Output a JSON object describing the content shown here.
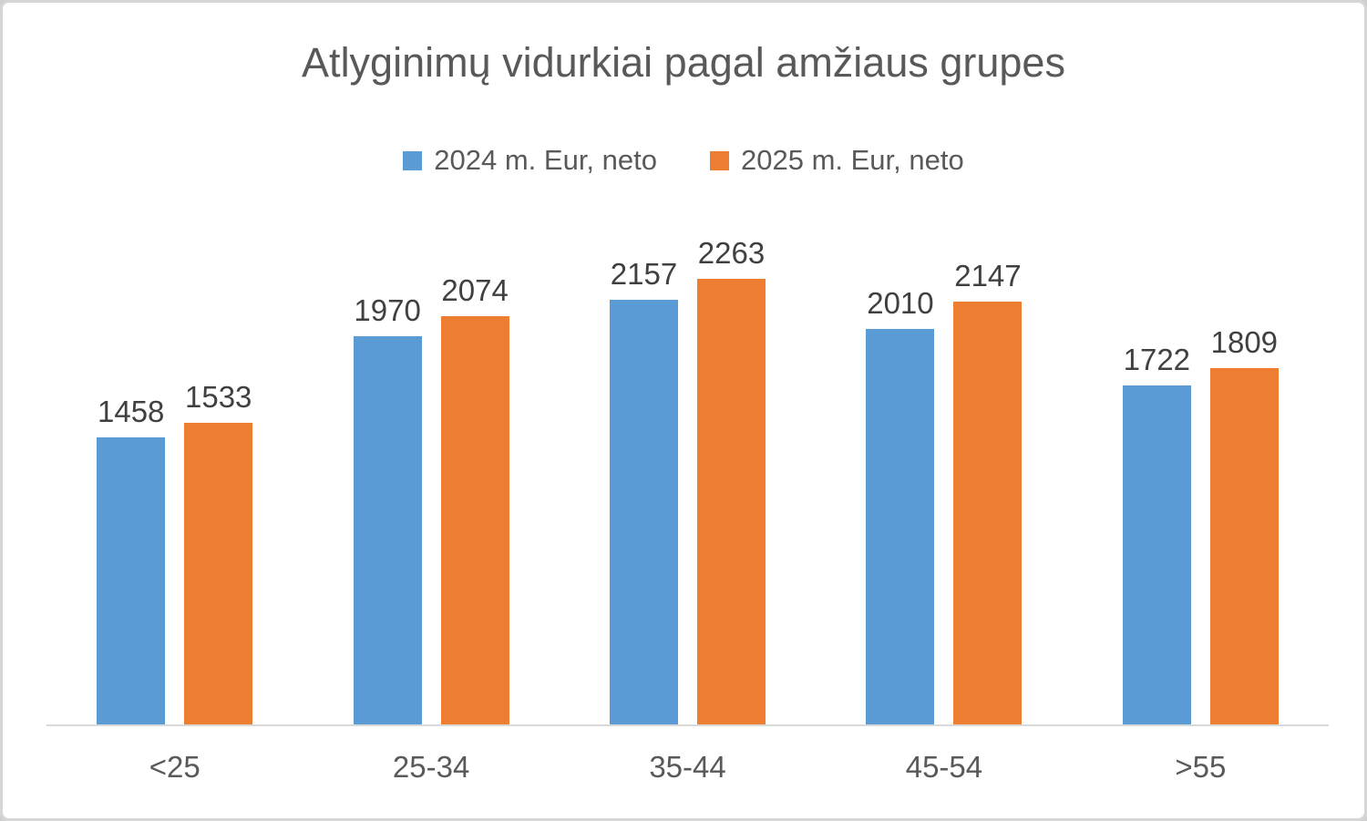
{
  "frame": {
    "background": "#ffffff",
    "border_color": "#d6d6d6"
  },
  "chart_data": {
    "type": "bar",
    "title": "Atlyginimų vidurkiai pagal amžiaus grupes",
    "categories": [
      "<25",
      "25-34",
      "35-44",
      "45-54",
      ">55"
    ],
    "series": [
      {
        "name": "2024 m. Eur, neto",
        "color": "#5B9BD5",
        "values": [
          1458,
          1970,
          2157,
          2010,
          1722
        ]
      },
      {
        "name": "2025 m. Eur, neto",
        "color": "#ED7D31",
        "values": [
          1533,
          2074,
          2263,
          2147,
          1809
        ]
      }
    ],
    "ylim": [
      0,
      2500
    ],
    "grid": false,
    "y_axis_visible": false,
    "legend_position": "top",
    "data_labels": true,
    "axis_line_color": "#d9d9d9",
    "title_color": "#595959",
    "label_color": "#404040",
    "tick_label_color": "#595959"
  }
}
